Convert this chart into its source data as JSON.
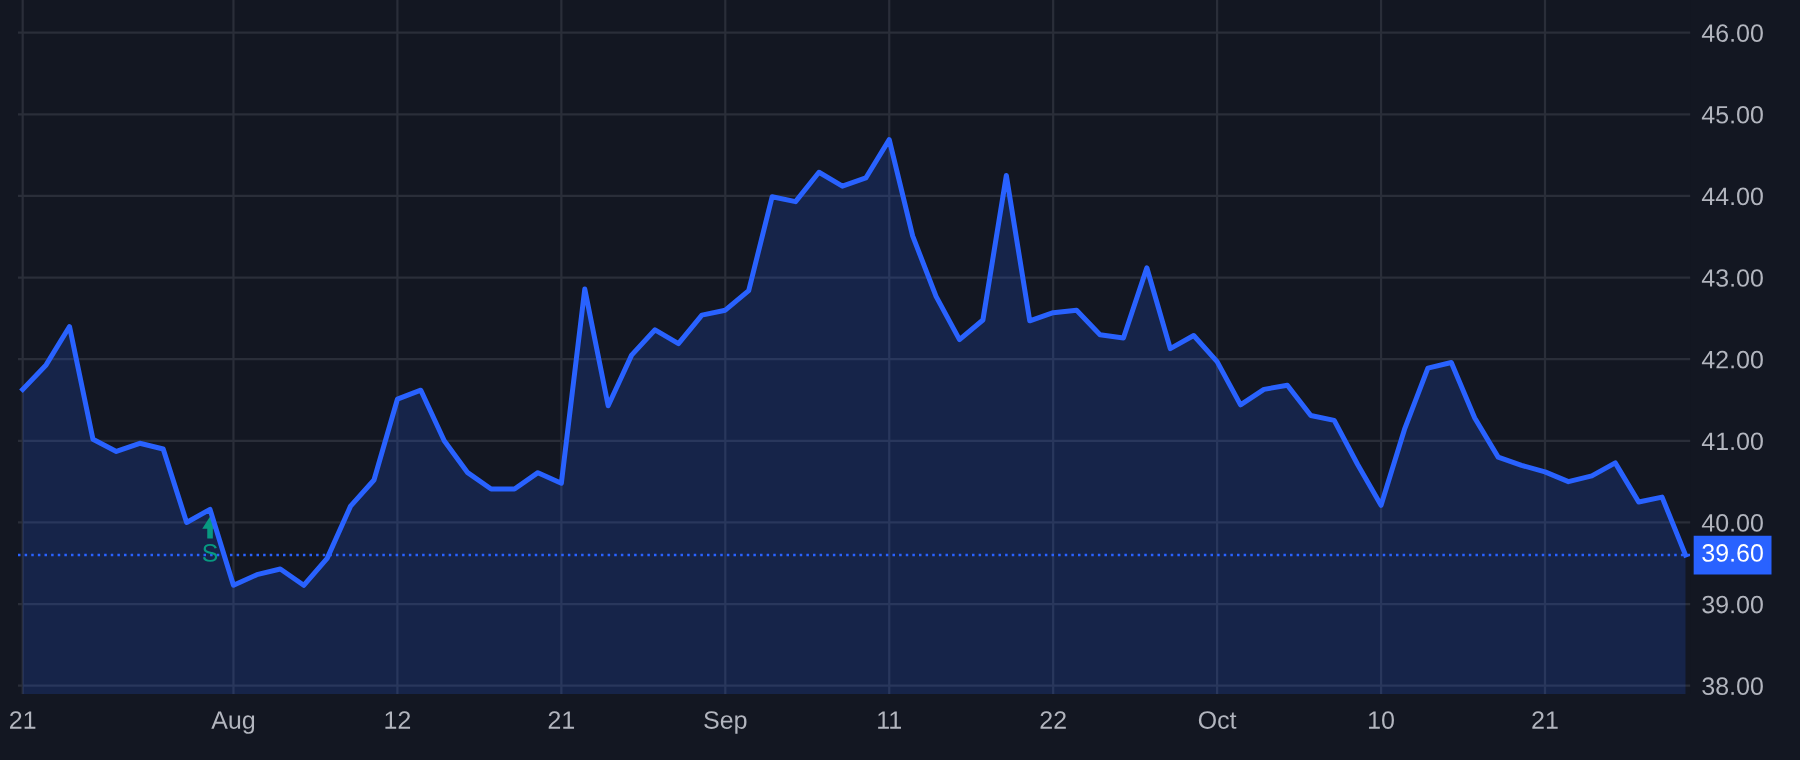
{
  "chart_data": {
    "type": "area",
    "categories": [
      "21",
      null,
      null,
      null,
      null,
      null,
      null,
      null,
      null,
      "Aug",
      null,
      null,
      null,
      null,
      null,
      null,
      "12",
      null,
      null,
      null,
      null,
      null,
      null,
      "21",
      null,
      null,
      null,
      null,
      null,
      null,
      "Sep",
      null,
      null,
      null,
      null,
      null,
      null,
      "11",
      null,
      null,
      null,
      null,
      null,
      null,
      "22",
      null,
      null,
      null,
      null,
      null,
      null,
      "Oct",
      null,
      null,
      null,
      null,
      null,
      null,
      "10",
      null,
      null,
      null,
      null,
      null,
      null,
      "21",
      null,
      null,
      null,
      null,
      null,
      null
    ],
    "series": [
      {
        "color": "#2962ff",
        "values": [
          41.63,
          41.93,
          42.4,
          41.02,
          40.87,
          40.97,
          40.9,
          40.0,
          40.16,
          39.23,
          39.36,
          39.43,
          39.23,
          39.56,
          40.2,
          40.52,
          41.51,
          41.62,
          41.0,
          40.61,
          40.41,
          40.41,
          40.61,
          40.48,
          42.86,
          41.43,
          42.05,
          42.36,
          42.19,
          42.54,
          42.6,
          42.84,
          43.99,
          43.93,
          44.29,
          44.12,
          44.22,
          44.69,
          43.51,
          42.77,
          42.24,
          42.48,
          44.25,
          42.47,
          42.57,
          42.6,
          42.3,
          42.26,
          43.12,
          42.13,
          42.29,
          41.97,
          41.44,
          41.63,
          41.68,
          41.31,
          41.25,
          40.71,
          40.21,
          41.14,
          41.89,
          41.96,
          41.28,
          40.8,
          40.7,
          40.62,
          40.5,
          40.57,
          40.73,
          40.25,
          40.31,
          39.6
        ]
      }
    ],
    "ylim": [
      37.9,
      46.4
    ],
    "yticks": [
      {
        "value": 38,
        "label": "38.00"
      },
      {
        "value": 39,
        "label": "39.00"
      },
      {
        "value": 40,
        "label": "40.00"
      },
      {
        "value": 41,
        "label": "41.00"
      },
      {
        "value": 42,
        "label": "42.00"
      },
      {
        "value": 43,
        "label": "43.00"
      },
      {
        "value": 44,
        "label": "44.00"
      },
      {
        "value": 45,
        "label": "45.00"
      },
      {
        "value": 46,
        "label": "46.00"
      }
    ],
    "grid": true,
    "ref_lines": [
      {
        "axis": "y",
        "value": 39.6,
        "label": "39.60",
        "color": "#2962ff",
        "line_style": "dotted"
      }
    ],
    "annotations": [
      "S"
    ]
  }
}
